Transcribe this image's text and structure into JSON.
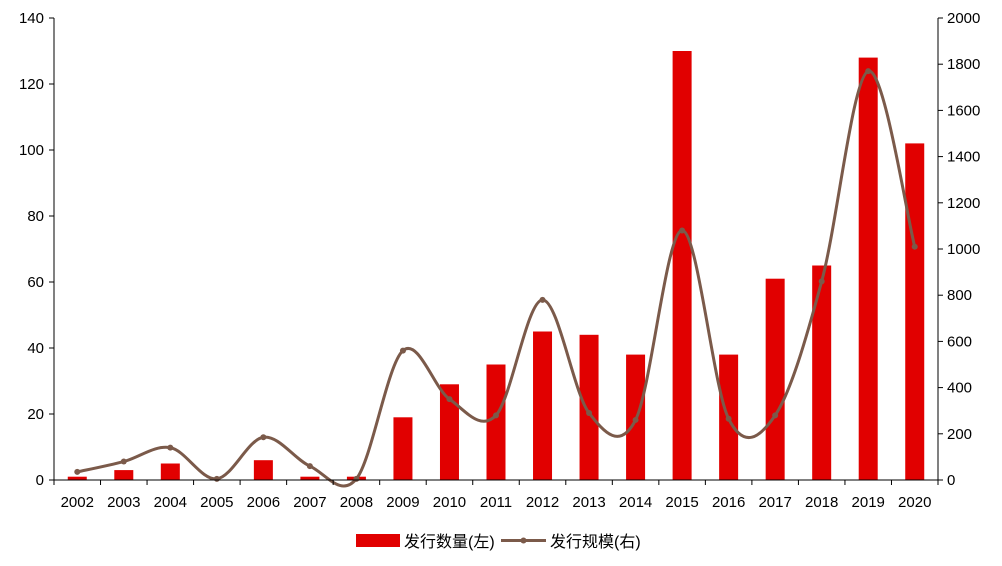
{
  "chart_data": {
    "type": "bar",
    "categories": [
      "2002",
      "2003",
      "2004",
      "2005",
      "2006",
      "2007",
      "2008",
      "2009",
      "2010",
      "2011",
      "2012",
      "2013",
      "2014",
      "2015",
      "2016",
      "2017",
      "2018",
      "2019",
      "2020"
    ],
    "series": [
      {
        "name": "发行数量(左)",
        "type": "bar",
        "axis": "left",
        "color": "#e10000",
        "values": [
          1,
          3,
          5,
          0,
          6,
          1,
          1,
          19,
          29,
          35,
          45,
          44,
          38,
          130,
          38,
          61,
          65,
          128,
          102
        ]
      },
      {
        "name": "发行规模(右)",
        "type": "line",
        "axis": "right",
        "color": "#7b5a4a",
        "values": [
          35,
          80,
          140,
          5,
          185,
          60,
          5,
          560,
          350,
          280,
          780,
          290,
          260,
          1080,
          265,
          280,
          860,
          1770,
          1010
        ]
      }
    ],
    "y_left": {
      "ylim": [
        0,
        140
      ],
      "ticks": [
        "0",
        "20",
        "40",
        "60",
        "80",
        "100",
        "120",
        "140"
      ]
    },
    "y_right": {
      "ylim": [
        0,
        2000
      ],
      "ticks": [
        "0",
        "200",
        "400",
        "600",
        "800",
        "1000",
        "1200",
        "1400",
        "1600",
        "1800",
        "2000"
      ]
    },
    "legend": {
      "position": "bottom",
      "items": [
        "发行数量(左)",
        "发行规模(右)"
      ]
    },
    "grid": false
  }
}
